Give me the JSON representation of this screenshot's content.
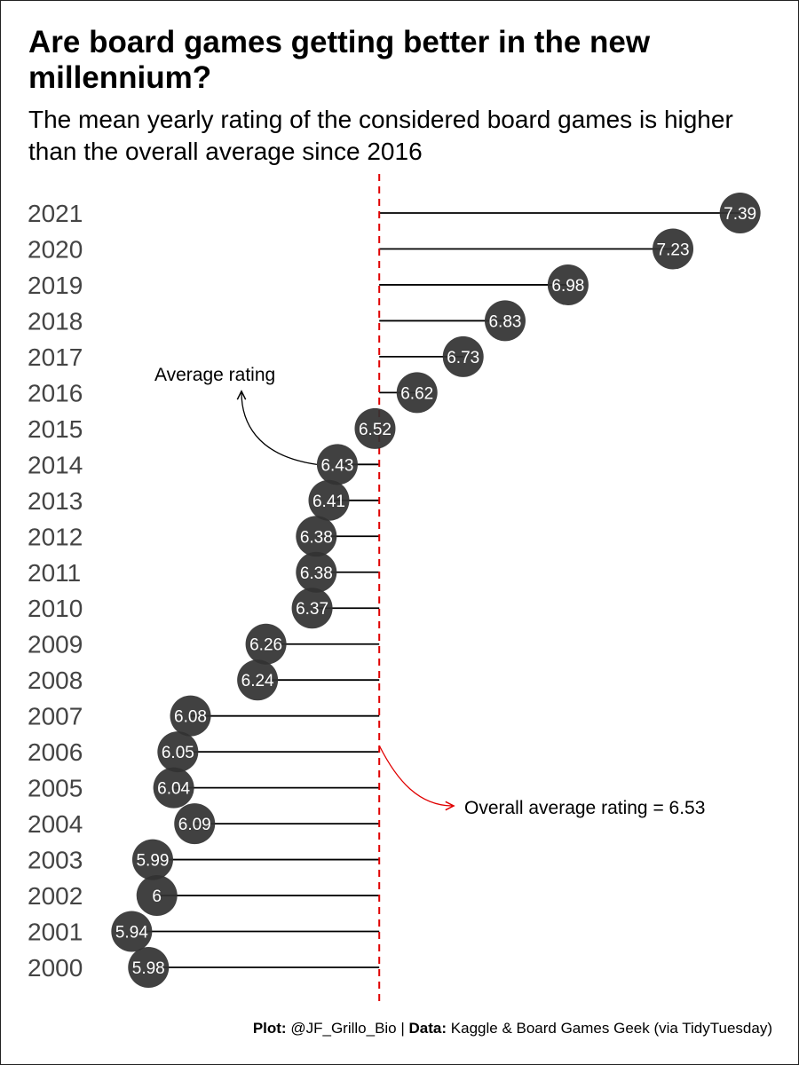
{
  "title": "Are board games getting better in the new millennium?",
  "subtitle": "The mean yearly rating of the considered board games is higher than the overall average since 2016",
  "caption": {
    "plot_label": "Plot:",
    "plot_value": "@JF_Grillo_Bio",
    "separator": "|",
    "data_label": "Data:",
    "data_value": "Kaggle & Board Games Geek (via TidyTuesday)"
  },
  "chart_data": {
    "type": "lollipop",
    "orientation": "horizontal",
    "categories": [
      "2000",
      "2001",
      "2002",
      "2003",
      "2004",
      "2005",
      "2006",
      "2007",
      "2008",
      "2009",
      "2010",
      "2011",
      "2012",
      "2013",
      "2014",
      "2015",
      "2016",
      "2017",
      "2018",
      "2019",
      "2020",
      "2021"
    ],
    "values": [
      5.98,
      5.94,
      6,
      5.99,
      6.09,
      6.04,
      6.05,
      6.08,
      6.24,
      6.26,
      6.37,
      6.38,
      6.38,
      6.41,
      6.43,
      6.52,
      6.62,
      6.73,
      6.83,
      6.98,
      7.23,
      7.39
    ],
    "value_labels": [
      "5.98",
      "5.94",
      "6",
      "5.99",
      "6.09",
      "6.04",
      "6.05",
      "6.08",
      "6.24",
      "6.26",
      "6.37",
      "6.38",
      "6.38",
      "6.41",
      "6.43",
      "6.52",
      "6.62",
      "6.73",
      "6.83",
      "6.98",
      "7.23",
      "7.39"
    ],
    "reference_value": 6.53,
    "xlim": [
      5.88,
      7.45
    ],
    "grid": false,
    "colors": {
      "point": "#333333",
      "segment": "#000000",
      "reference_line": "#e00000",
      "label_text": "#ffffff",
      "tick_text": "#444444"
    },
    "annotations": {
      "average_rating": {
        "text": "Average rating",
        "points_to_year": "2014"
      },
      "overall_average": {
        "text": "Overall average rating = 6.53"
      }
    }
  }
}
